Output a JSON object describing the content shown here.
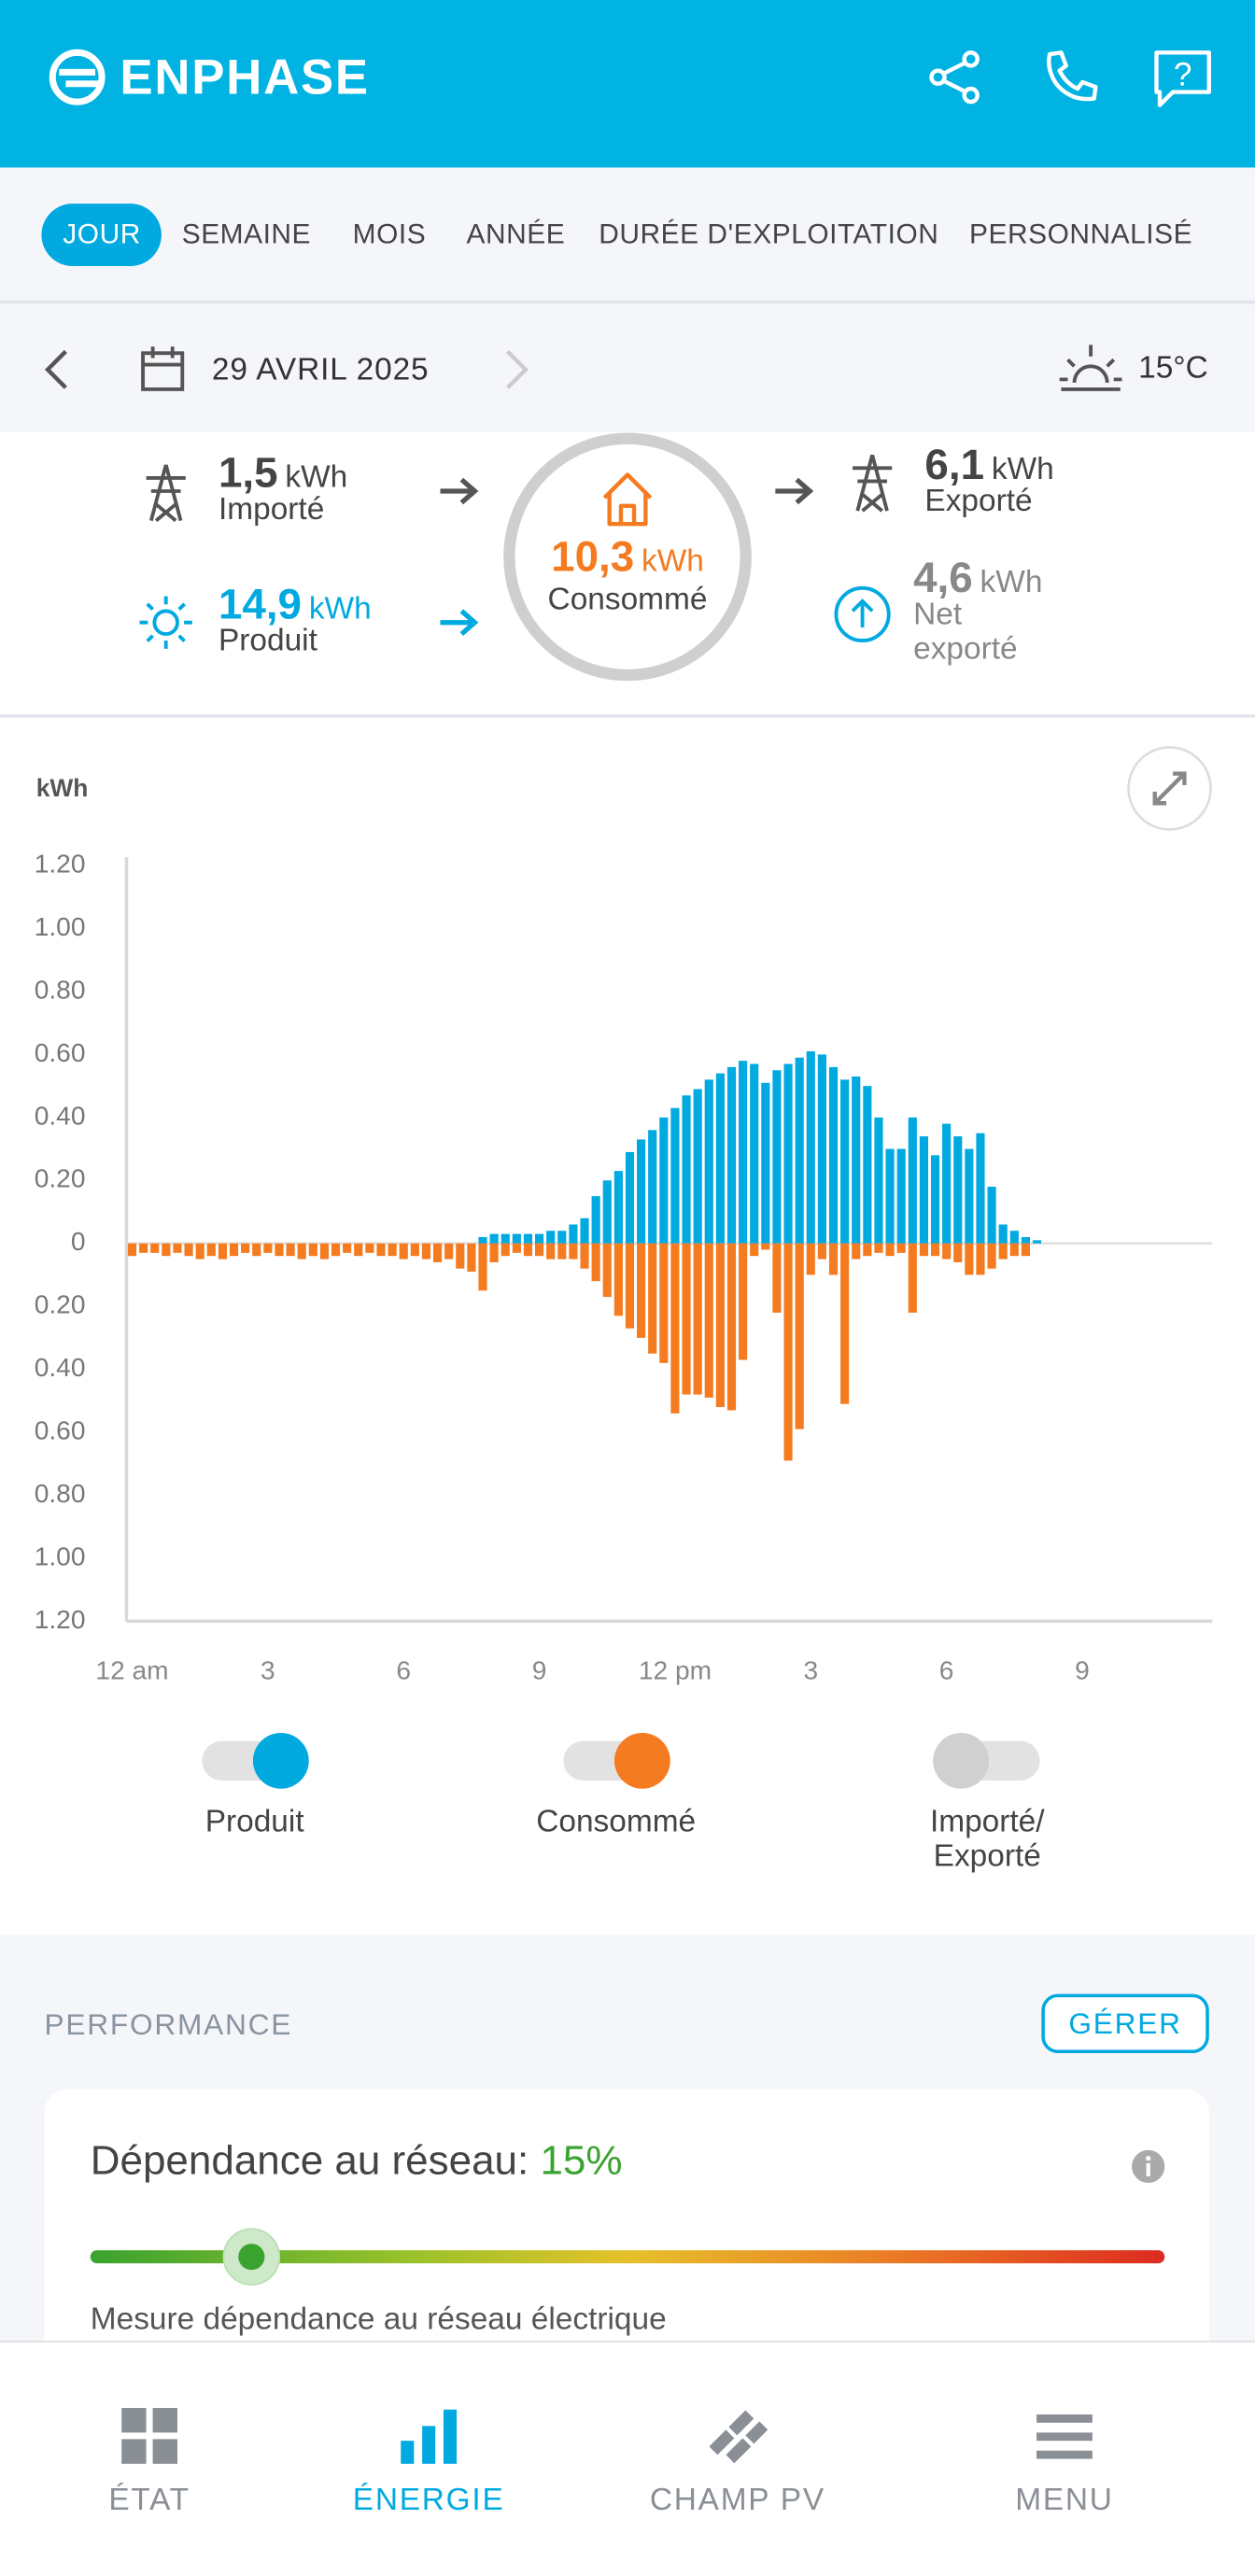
{
  "header": {
    "brand": "ENPHASE"
  },
  "tabs": {
    "items": [
      "JOUR",
      "SEMAINE",
      "MOIS",
      "ANNÉE",
      "DURÉE D'EXPLOITATION",
      "PERSONNALISÉ"
    ],
    "active": 0
  },
  "date_bar": {
    "date": "29 AVRIL 2025",
    "temperature": "15°C"
  },
  "summary": {
    "imported": {
      "value": "1,5",
      "unit": "kWh",
      "label": "Importé"
    },
    "produced": {
      "value": "14,9",
      "unit": "kWh",
      "label": "Produit"
    },
    "consumed": {
      "value": "10,3",
      "unit": "kWh",
      "label": "Consommé"
    },
    "exported": {
      "value": "6,1",
      "unit": "kWh",
      "label": "Exporté"
    },
    "net_exported": {
      "value": "4,6",
      "unit": "kWh",
      "label": "Net exporté"
    }
  },
  "chart_data": {
    "type": "bar",
    "y_label": "kWh",
    "categories": [
      "12 am",
      null,
      null,
      null,
      null,
      null,
      null,
      null,
      null,
      null,
      null,
      null,
      "3",
      null,
      null,
      null,
      null,
      null,
      null,
      null,
      null,
      null,
      null,
      null,
      "6",
      null,
      null,
      null,
      null,
      null,
      null,
      null,
      null,
      null,
      null,
      null,
      "9",
      null,
      null,
      null,
      null,
      null,
      null,
      null,
      null,
      null,
      null,
      null,
      "12 pm",
      null,
      null,
      null,
      null,
      null,
      null,
      null,
      null,
      null,
      null,
      null,
      "3",
      null,
      null,
      null,
      null,
      null,
      null,
      null,
      null,
      null,
      null,
      null,
      "6",
      null,
      null,
      null,
      null,
      null,
      null,
      null,
      null,
      null,
      null,
      null,
      "9",
      null,
      null,
      null,
      null,
      null,
      null,
      null,
      null,
      null,
      null,
      null
    ],
    "series": [
      {
        "name": "Produit",
        "color": "#00a9e0",
        "visible": true,
        "values": [
          null,
          null,
          null,
          null,
          null,
          null,
          null,
          null,
          null,
          null,
          null,
          null,
          null,
          null,
          null,
          null,
          null,
          null,
          null,
          null,
          null,
          null,
          null,
          null,
          null,
          null,
          null,
          null,
          null,
          null,
          null,
          0.02,
          0.03,
          0.03,
          0.03,
          0.03,
          0.03,
          0.04,
          0.04,
          0.06,
          0.08,
          0.15,
          0.2,
          0.23,
          0.29,
          0.33,
          0.36,
          0.4,
          0.43,
          0.47,
          0.49,
          0.52,
          0.54,
          0.56,
          0.58,
          0.57,
          0.51,
          0.55,
          0.57,
          0.59,
          0.61,
          0.6,
          0.56,
          0.52,
          0.53,
          0.5,
          0.4,
          0.3,
          0.3,
          0.4,
          0.34,
          0.28,
          0.38,
          0.34,
          0.3,
          0.35,
          0.18,
          0.06,
          0.04,
          0.02,
          0.01,
          null,
          null,
          null,
          null,
          null,
          null,
          null,
          null,
          null,
          null,
          null,
          null,
          null,
          null,
          null
        ]
      },
      {
        "name": "Consommé",
        "color": "#f47b20",
        "visible": true,
        "values": [
          -0.04,
          -0.03,
          -0.03,
          -0.04,
          -0.03,
          -0.04,
          -0.05,
          -0.04,
          -0.05,
          -0.04,
          -0.03,
          -0.04,
          -0.03,
          -0.04,
          -0.04,
          -0.05,
          -0.04,
          -0.05,
          -0.04,
          -0.03,
          -0.04,
          -0.03,
          -0.04,
          -0.04,
          -0.05,
          -0.04,
          -0.05,
          -0.06,
          -0.05,
          -0.08,
          -0.09,
          -0.15,
          -0.06,
          -0.04,
          -0.03,
          -0.04,
          -0.04,
          -0.05,
          -0.05,
          -0.05,
          -0.08,
          -0.12,
          -0.17,
          -0.23,
          -0.27,
          -0.3,
          -0.35,
          -0.38,
          -0.54,
          -0.48,
          -0.48,
          -0.49,
          -0.52,
          -0.53,
          -0.37,
          -0.04,
          -0.02,
          -0.22,
          -0.69,
          -0.59,
          -0.1,
          -0.05,
          -0.1,
          -0.51,
          -0.05,
          -0.04,
          -0.03,
          -0.04,
          -0.03,
          -0.22,
          -0.04,
          -0.04,
          -0.05,
          -0.06,
          -0.1,
          -0.1,
          -0.08,
          -0.05,
          -0.04,
          -0.04,
          null,
          null,
          null,
          null,
          null,
          null,
          null,
          null,
          null,
          null,
          null,
          null,
          null,
          null,
          null,
          null
        ]
      }
    ],
    "hidden_series": [
      {
        "name": "Importé/ Exporté",
        "color": "#d0d0d0",
        "visible": false
      }
    ],
    "ylim": [
      -1.2,
      1.2
    ],
    "yticks": [
      {
        "value": 1.2,
        "label": "1.20"
      },
      {
        "value": 1,
        "label": "1.00"
      },
      {
        "value": 0.8,
        "label": "0.80"
      },
      {
        "value": 0.6,
        "label": "0.60"
      },
      {
        "value": 0.4,
        "label": "0.40"
      },
      {
        "value": 0.2,
        "label": "0.20"
      },
      0,
      {
        "value": -0.2,
        "label": "0.20"
      },
      {
        "value": -0.4,
        "label": "0.40"
      },
      {
        "value": -0.6,
        "label": "0.60"
      },
      {
        "value": -0.8,
        "label": "0.80"
      },
      {
        "value": -1,
        "label": "1.00"
      },
      {
        "value": -1.2,
        "label": "1.20"
      }
    ],
    "grid": false
  },
  "performance": {
    "title": "PERFORMANCE",
    "button": "GÉRER",
    "dependency": {
      "title": "Dépendance au réseau:",
      "value": 15,
      "value_label": "15%",
      "range": [
        0,
        100
      ],
      "caption": "Mesure dépendance au réseau électrique"
    }
  },
  "nav": {
    "items": [
      "ÉTAT",
      "ÉNERGIE",
      "CHAMP PV",
      "MENU"
    ],
    "active": 1
  }
}
